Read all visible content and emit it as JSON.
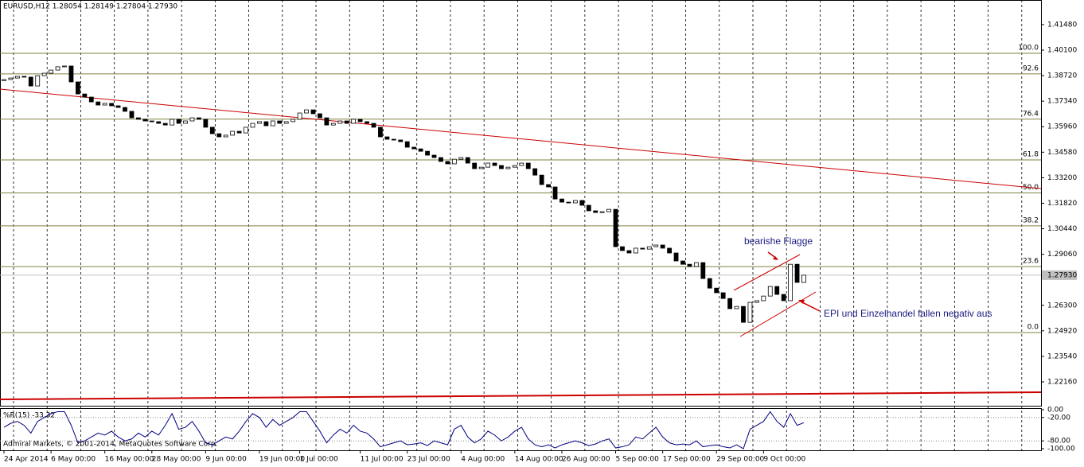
{
  "chart_data": {
    "type": "candlestick",
    "header": "EURUSD,H12  1.28054 1.28149 1.27804 1.27930",
    "open": 1.3845,
    "closes": [
      1.3851,
      1.3859,
      1.3868,
      1.3864,
      1.3816,
      1.3872,
      1.3885,
      1.3902,
      1.392,
      1.3924,
      1.3838,
      1.3773,
      1.3756,
      1.373,
      1.3713,
      1.3722,
      1.3709,
      1.37,
      1.3679,
      1.3644,
      1.3636,
      1.3627,
      1.3623,
      1.3614,
      1.3605,
      1.3636,
      1.3614,
      1.3627,
      1.3644,
      1.3636,
      1.3593,
      1.3558,
      1.3541,
      1.355,
      1.3571,
      1.3562,
      1.3593,
      1.3614,
      1.3623,
      1.3601,
      1.3627,
      1.3614,
      1.3623,
      1.3636,
      1.367,
      1.3687,
      1.3666,
      1.3644,
      1.3605,
      1.3614,
      1.3627,
      1.3614,
      1.3636,
      1.3623,
      1.3614,
      1.3593,
      1.3541,
      1.3528,
      1.3524,
      1.3515,
      1.3485,
      1.3476,
      1.3463,
      1.3442,
      1.3429,
      1.3408,
      1.3395,
      1.342,
      1.3429,
      1.3399,
      1.3369,
      1.3377,
      1.3399,
      1.3386,
      1.3369,
      1.3377,
      1.3386,
      1.3399,
      1.3369,
      1.3334,
      1.3283,
      1.327,
      1.3205,
      1.3188,
      1.3184,
      1.3197,
      1.3171,
      1.3141,
      1.3132,
      1.3136,
      1.3149,
      1.2947,
      1.2926,
      1.2913,
      1.2939,
      1.2934,
      1.2947,
      1.2956,
      1.2939,
      1.2913,
      1.287,
      1.2852,
      1.284,
      1.2861,
      1.2775,
      1.2723,
      1.2698,
      1.2667,
      1.2612,
      1.2624,
      1.2538,
      1.2646,
      1.2655,
      1.268,
      1.2732,
      1.2689,
      1.2655,
      1.2852,
      1.2754,
      1.2793
    ],
    "categories": [
      "24 Apr 2014",
      null,
      null,
      null,
      null,
      null,
      null,
      "6 May 00:00",
      null,
      null,
      null,
      null,
      null,
      null,
      null,
      "16 May 00:00",
      null,
      null,
      null,
      null,
      null,
      null,
      "28 May 00:00",
      null,
      null,
      null,
      null,
      null,
      null,
      null,
      "9 Jun 00:00",
      null,
      null,
      null,
      null,
      null,
      null,
      null,
      "19 Jun 00:00",
      null,
      null,
      null,
      null,
      null,
      "1 Jul 00:00",
      null,
      null,
      null,
      null,
      null,
      null,
      null,
      null,
      "11 Jul 00:00",
      null,
      null,
      null,
      null,
      null,
      null,
      "23 Jul 00:00",
      null,
      null,
      null,
      null,
      null,
      null,
      null,
      "4 Aug 00:00",
      null,
      null,
      null,
      null,
      null,
      null,
      null,
      "14 Aug 00:00",
      null,
      null,
      null,
      null,
      null,
      null,
      "26 Aug 00:00",
      null,
      null,
      null,
      null,
      null,
      null,
      null,
      "5 Sep 00:00",
      null,
      null,
      null,
      null,
      null,
      null,
      "17 Sep 00:00",
      null,
      null,
      null,
      null,
      null,
      null,
      null,
      "29 Sep 00:00",
      null,
      null,
      null,
      null,
      null,
      null,
      "9 Oct 00:00",
      null,
      null,
      null,
      null,
      null,
      null
    ],
    "ylim": [
      1.2087,
      1.4281
    ],
    "yticks": [
      {
        "value": 1.4148,
        "label": "1.41480"
      },
      {
        "value": 1.401,
        "label": "1.40100"
      },
      {
        "value": 1.3872,
        "label": "1.38720"
      },
      {
        "value": 1.3734,
        "label": "1.37340"
      },
      {
        "value": 1.3596,
        "label": "1.35960"
      },
      {
        "value": 1.3458,
        "label": "1.34580"
      },
      {
        "value": 1.332,
        "label": "1.33200"
      },
      {
        "value": 1.3182,
        "label": "1.31820"
      },
      {
        "value": 1.3044,
        "label": "1.30440"
      },
      {
        "value": 1.2906,
        "label": "1.29060"
      },
      {
        "value": 1.263,
        "label": "1.26300"
      },
      {
        "value": 1.2492,
        "label": "1.24920"
      },
      {
        "value": 1.2354,
        "label": "1.23540"
      },
      {
        "value": 1.2216,
        "label": "1.22160"
      }
    ],
    "last_price": {
      "value": 1.2793,
      "label": "1.27930"
    },
    "fib_high": 1.3993,
    "fib_low": 1.2483,
    "fib_levels": [
      {
        "value": 100,
        "label": "100.0"
      },
      92.6,
      76.4,
      61.8,
      {
        "value": 50,
        "label": "50.0"
      },
      38.2,
      23.6,
      {
        "value": 0,
        "label": "0.0"
      }
    ],
    "annotations": [
      "bearishe Flagge",
      "EPI und Einzelhandel fallen negativ aus"
    ],
    "copyright": "Admiral Markets, © 2001-2014, MetaQuotes Software Corp.",
    "indicator": {
      "label": "%R(15) -33.32",
      "color": "#000080",
      "ylim": [
        -100,
        0
      ],
      "yticks": [
        {
          "value": 0,
          "label": "0.00"
        },
        {
          "value": -20,
          "label": "-20.00"
        },
        {
          "value": -80,
          "label": "-80.00"
        },
        {
          "value": -100,
          "label": "-100.00"
        }
      ],
      "values": [
        -45,
        -35,
        -30,
        -40,
        -60,
        -30,
        -20,
        -10,
        -5,
        -5,
        -40,
        -85,
        -80,
        -70,
        -60,
        -65,
        -55,
        -70,
        -80,
        -75,
        -60,
        -70,
        -55,
        -65,
        -40,
        -10,
        -50,
        -45,
        -30,
        -55,
        -85,
        -90,
        -80,
        -70,
        -75,
        -55,
        -30,
        -10,
        -20,
        -45,
        -25,
        -40,
        -30,
        -20,
        -5,
        -5,
        -30,
        -55,
        -85,
        -65,
        -50,
        -60,
        -40,
        -55,
        -60,
        -75,
        -95,
        -90,
        -85,
        -80,
        -90,
        -88,
        -85,
        -92,
        -80,
        -85,
        -90,
        -50,
        -40,
        -70,
        -85,
        -75,
        -55,
        -65,
        -80,
        -70,
        -55,
        -45,
        -75,
        -90,
        -95,
        -90,
        -98,
        -90,
        -85,
        -80,
        -85,
        -92,
        -88,
        -80,
        -75,
        -98,
        -95,
        -90,
        -70,
        -75,
        -60,
        -45,
        -70,
        -85,
        -90,
        -88,
        -90,
        -80,
        -95,
        -92,
        -90,
        -95,
        -98,
        -90,
        -100,
        -50,
        -40,
        -30,
        -5,
        -30,
        -45,
        -10,
        -40,
        -33.32
      ]
    }
  }
}
